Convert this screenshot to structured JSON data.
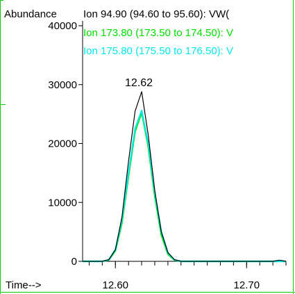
{
  "chart_data": {
    "type": "line",
    "ylabel": "Abundance",
    "xlabel": "Time-->",
    "xlim": [
      12.575,
      12.73
    ],
    "ylim": [
      0,
      40000
    ],
    "yticks": [
      0,
      10000,
      20000,
      30000,
      40000
    ],
    "ytick_labels": [
      "0",
      "10000",
      "20000",
      "30000",
      "40000"
    ],
    "xticks": [
      12.6,
      12.7
    ],
    "xtick_labels": [
      "12.60",
      "12.70"
    ],
    "x_minor_step": 0.01,
    "grid": false,
    "series": [
      {
        "name": "Ion  94.90 (94.60 to 95.60): VW(",
        "color": "#000000",
        "x": [
          12.575,
          12.59,
          12.595,
          12.6,
          12.605,
          12.61,
          12.615,
          12.62,
          12.625,
          12.63,
          12.635,
          12.64,
          12.645,
          12.65,
          12.655,
          12.66,
          12.72,
          12.725,
          12.73
        ],
        "y": [
          0,
          0,
          300,
          2000,
          7500,
          17000,
          25500,
          28800,
          21500,
          12000,
          5000,
          1500,
          300,
          0,
          0,
          0,
          0,
          200,
          0
        ]
      },
      {
        "name": "Ion 173.80 (173.50 to 174.50): V",
        "color": "#00e000",
        "x": [
          12.575,
          12.59,
          12.595,
          12.6,
          12.605,
          12.61,
          12.615,
          12.62,
          12.625,
          12.63,
          12.635,
          12.64,
          12.645,
          12.65,
          12.655,
          12.73
        ],
        "y": [
          0,
          0,
          200,
          1800,
          6500,
          14500,
          22000,
          25300,
          19500,
          11000,
          4500,
          1200,
          200,
          0,
          0,
          0
        ]
      },
      {
        "name": "Ion 175.80 (175.50 to 176.50): V",
        "color": "#00e8e8",
        "x": [
          12.575,
          12.59,
          12.595,
          12.6,
          12.605,
          12.61,
          12.615,
          12.62,
          12.625,
          12.63,
          12.635,
          12.64,
          12.645,
          12.65,
          12.655,
          12.73
        ],
        "y": [
          0,
          0,
          250,
          2000,
          7000,
          15000,
          22500,
          25600,
          20000,
          11500,
          5000,
          1400,
          250,
          0,
          0,
          0
        ]
      }
    ],
    "annotations": [
      {
        "text": "12.62",
        "x": 12.62,
        "y": 28800
      }
    ]
  },
  "colors": {
    "frame_border": "#00cc00",
    "axis": "#000000",
    "background": "#ffffff"
  }
}
